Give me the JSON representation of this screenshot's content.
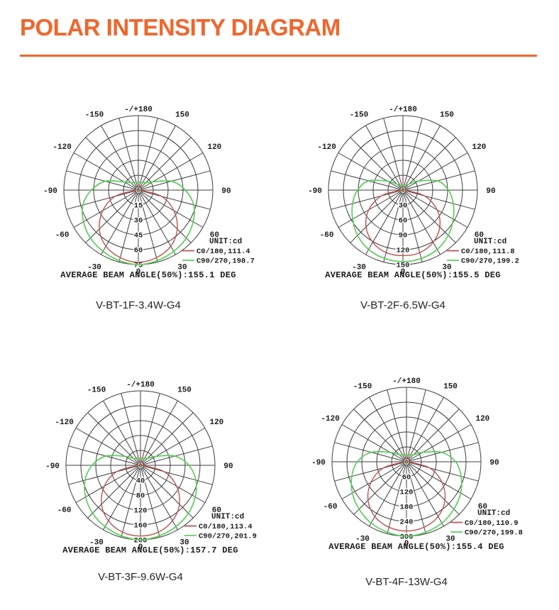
{
  "page": {
    "title": "POLAR INTENSITY DIAGRAM",
    "accent_color": "#F0662C"
  },
  "polar_axes": {
    "center_label": "0",
    "angle_ticks": [
      {
        "deg": 180,
        "label": "-/+180"
      },
      {
        "deg": -150,
        "label": "-150"
      },
      {
        "deg": 150,
        "label": "150"
      },
      {
        "deg": -120,
        "label": "-120"
      },
      {
        "deg": 120,
        "label": "120"
      },
      {
        "deg": -90,
        "label": "-90"
      },
      {
        "deg": 90,
        "label": "90"
      },
      {
        "deg": -60,
        "label": "-60"
      },
      {
        "deg": 60,
        "label": "60"
      },
      {
        "deg": -30,
        "label": "-30"
      },
      {
        "deg": 30,
        "label": "30"
      },
      {
        "deg": 0,
        "label": "0"
      }
    ],
    "sample_angles_deg": [
      0,
      15,
      30,
      45,
      60,
      75,
      90,
      105,
      120,
      135,
      150,
      165,
      180
    ],
    "colors": {
      "grid": "#3f3f3f",
      "c0": "#BE534E",
      "c90": "#5BCE5B",
      "center_zero": "#2f8f2f"
    }
  },
  "chart_data": [
    {
      "type": "polar-intensity",
      "caption": "V-BT-1F-3.4W-G4",
      "unit_label": "UNIT:cd",
      "ring_values": [
        15,
        30,
        45,
        60,
        75
      ],
      "legend": [
        {
          "series": "C0/180",
          "max_cd": 111.4,
          "label": "C0/180,111.4",
          "color": "#BE534E"
        },
        {
          "series": "C90/270",
          "max_cd": 198.7,
          "label": "C90/270,198.7",
          "color": "#5BCE5B"
        }
      ],
      "beam_angle_text": "AVERAGE BEAM ANGLE(50%):155.1 DEG",
      "series": [
        {
          "name": "C0/180",
          "radius_fraction": [
            0.97,
            0.94,
            0.87,
            0.74,
            0.55,
            0.32,
            0.02,
            0,
            0,
            0,
            0,
            0,
            0.08
          ]
        },
        {
          "name": "C90/270",
          "radius_fraction": [
            1.0,
            0.98,
            0.95,
            0.91,
            0.85,
            0.77,
            0.63,
            0.46,
            0.22,
            0.14,
            0.12,
            0.11,
            0.1
          ]
        }
      ]
    },
    {
      "type": "polar-intensity",
      "caption": "V-BT-2F-6.5W-G4",
      "unit_label": "UNIT:cd",
      "ring_values": [
        30,
        60,
        90,
        120,
        150
      ],
      "legend": [
        {
          "series": "C0/180",
          "max_cd": 111.8,
          "label": "C0/180,111.8",
          "color": "#BE534E"
        },
        {
          "series": "C90/270",
          "max_cd": 199.2,
          "label": "C90/270,199.2",
          "color": "#5BCE5B"
        }
      ],
      "beam_angle_text": "AVERAGE BEAM ANGLE(50%):155.5 DEG",
      "series": [
        {
          "name": "C0/180",
          "radius_fraction": [
            0.88,
            0.87,
            0.81,
            0.7,
            0.53,
            0.3,
            0.02,
            0,
            0,
            0,
            0,
            0,
            0.17
          ]
        },
        {
          "name": "C90/270",
          "radius_fraction": [
            0.96,
            0.95,
            0.92,
            0.86,
            0.78,
            0.7,
            0.61,
            0.48,
            0.24,
            0.11,
            0.07,
            0.06,
            0.05
          ]
        }
      ]
    },
    {
      "type": "polar-intensity",
      "caption": "V-BT-3F-9.6W-G4",
      "unit_label": "UNIT:cd",
      "ring_values": [
        40,
        80,
        120,
        160,
        200
      ],
      "legend": [
        {
          "series": "C0/180",
          "max_cd": 113.4,
          "label": "C0/180,113.4",
          "color": "#BE534E"
        },
        {
          "series": "C90/270",
          "max_cd": 201.9,
          "label": "C90/270,201.9",
          "color": "#5BCE5B"
        }
      ],
      "beam_angle_text": "AVERAGE BEAM ANGLE(50%):157.7 DEG",
      "series": [
        {
          "name": "C0/180",
          "radius_fraction": [
            0.95,
            0.93,
            0.86,
            0.74,
            0.56,
            0.33,
            0.02,
            0,
            0,
            0,
            0,
            0,
            0.16
          ]
        },
        {
          "name": "C90/270",
          "radius_fraction": [
            1.0,
            0.98,
            0.95,
            0.91,
            0.85,
            0.77,
            0.65,
            0.48,
            0.24,
            0.13,
            0.11,
            0.1,
            0.09
          ]
        }
      ]
    },
    {
      "type": "polar-intensity",
      "caption": "V-BT-4F-13W-G4",
      "unit_label": "UNIT:cd",
      "ring_values": [
        60,
        120,
        180,
        240,
        300
      ],
      "legend": [
        {
          "series": "C0/180",
          "max_cd": 110.9,
          "label": "C0/180,110.9",
          "color": "#BE534E"
        },
        {
          "series": "C90/270",
          "max_cd": 199.8,
          "label": "C90/270,199.8",
          "color": "#5BCE5B"
        }
      ],
      "beam_angle_text": "AVERAGE BEAM ANGLE(50%):155.4 DEG",
      "series": [
        {
          "name": "C0/180",
          "radius_fraction": [
            0.93,
            0.91,
            0.85,
            0.73,
            0.55,
            0.32,
            0.02,
            0,
            0,
            0,
            0,
            0,
            0.15
          ]
        },
        {
          "name": "C90/270",
          "radius_fraction": [
            1.0,
            0.98,
            0.95,
            0.9,
            0.84,
            0.76,
            0.66,
            0.49,
            0.25,
            0.13,
            0.11,
            0.1,
            0.09
          ]
        }
      ]
    }
  ]
}
